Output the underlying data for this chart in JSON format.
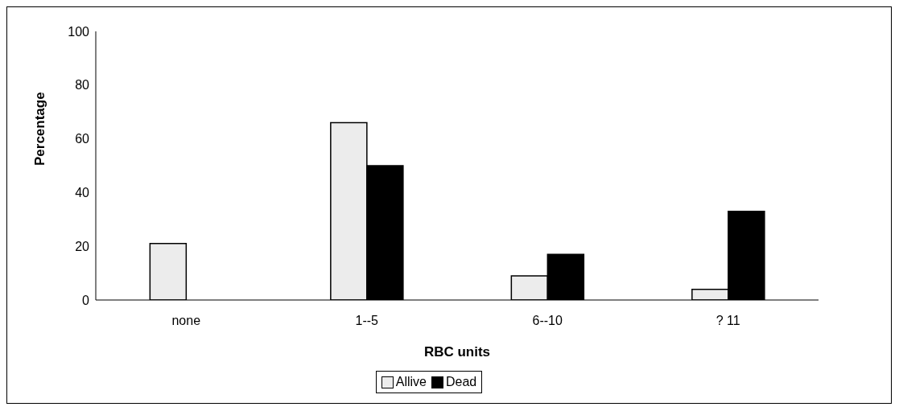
{
  "chart_data": {
    "type": "bar",
    "xlabel": "RBC units",
    "ylabel": "Percentage",
    "categories": [
      "none",
      "1--5",
      "6--10",
      "? 11"
    ],
    "series": [
      {
        "name": "Allive",
        "color": "#ececec",
        "values": [
          21,
          66,
          9,
          4
        ]
      },
      {
        "name": "Dead",
        "color": "#000000",
        "values": [
          0,
          50,
          17,
          33
        ]
      }
    ],
    "ylim": [
      0,
      100
    ],
    "yticks": [
      0,
      20,
      40,
      60,
      80,
      100
    ],
    "grid": false,
    "legend": "bottom"
  }
}
